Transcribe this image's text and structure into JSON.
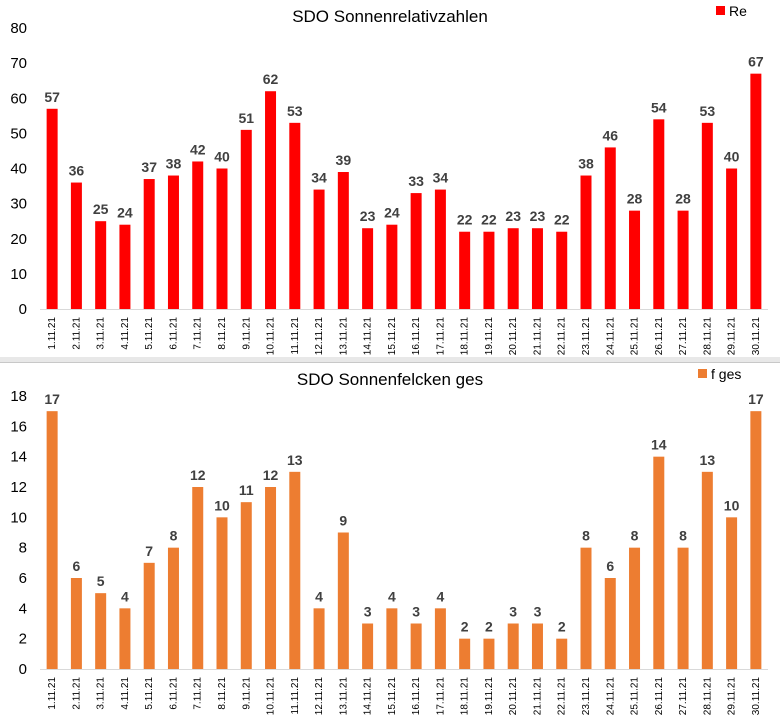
{
  "chart_data": [
    {
      "type": "bar",
      "title": "SDO Sonnenrelativzahlen",
      "xlabel": "",
      "ylabel": "",
      "ylim": [
        0,
        80
      ],
      "yticks": [
        0,
        10,
        20,
        30,
        40,
        50,
        60,
        70,
        80
      ],
      "grid": false,
      "legend_position": "top-right",
      "color": "#ff0000",
      "categories": [
        "1.11.21",
        "2.11.21",
        "3.11.21",
        "4.11.21",
        "5.11.21",
        "6.11.21",
        "7.11.21",
        "8.11.21",
        "9.11.21",
        "10.11.21",
        "11.11.21",
        "12.11.21",
        "13.11.21",
        "14.11.21",
        "15.11.21",
        "16.11.21",
        "17.11.21",
        "18.11.21",
        "19.11.21",
        "20.11.21",
        "21.11.21",
        "22.11.21",
        "23.11.21",
        "24.11.21",
        "25.11.21",
        "26.11.21",
        "27.11.21",
        "28.11.21",
        "29.11.21",
        "30.11.21"
      ],
      "series": [
        {
          "name": "Re",
          "values": [
            57,
            36,
            25,
            24,
            37,
            38,
            42,
            40,
            51,
            62,
            53,
            34,
            39,
            23,
            24,
            33,
            34,
            22,
            22,
            23,
            23,
            22,
            38,
            46,
            28,
            54,
            28,
            53,
            40,
            67
          ]
        }
      ]
    },
    {
      "type": "bar",
      "title": "SDO Sonnenfelcken ges",
      "xlabel": "",
      "ylabel": "",
      "ylim": [
        0,
        18
      ],
      "yticks": [
        0,
        2,
        4,
        6,
        8,
        10,
        12,
        14,
        16,
        18
      ],
      "grid": false,
      "legend_position": "top-right",
      "color": "#ed7d31",
      "categories": [
        "1.11.21",
        "2.11.21",
        "3.11.21",
        "4.11.21",
        "5.11.21",
        "6.11.21",
        "7.11.21",
        "8.11.21",
        "9.11.21",
        "10.11.21",
        "11.11.21",
        "12.11.21",
        "13.11.21",
        "14.11.21",
        "15.11.21",
        "16.11.21",
        "17.11.21",
        "18.11.21",
        "19.11.21",
        "20.11.21",
        "21.11.21",
        "22.11.21",
        "23.11.21",
        "24.11.21",
        "25.11.21",
        "26.11.21",
        "27.11.21",
        "28.11.21",
        "29.11.21",
        "30.11.21"
      ],
      "series": [
        {
          "name": "f ges",
          "values": [
            17,
            6,
            5,
            4,
            7,
            8,
            12,
            10,
            11,
            12,
            13,
            4,
            9,
            3,
            4,
            3,
            4,
            2,
            2,
            3,
            3,
            2,
            8,
            6,
            8,
            14,
            8,
            13,
            10,
            17
          ]
        }
      ]
    }
  ]
}
